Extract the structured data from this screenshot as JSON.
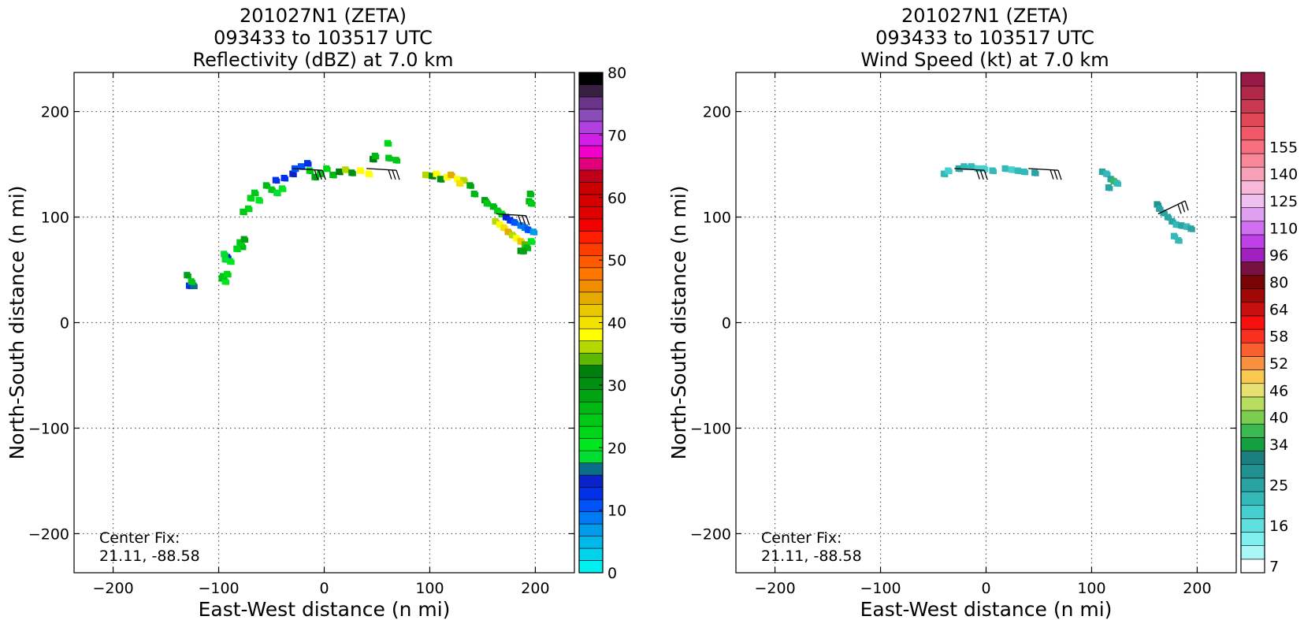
{
  "chart_data": [
    {
      "type": "heatmap",
      "title": [
        "201027N1 (ZETA)",
        "093433 to 103517 UTC",
        "Reflectivity (dBZ) at 7.0 km"
      ],
      "xlabel": "East-West distance (n mi)",
      "ylabel": "North-South distance (n mi)",
      "xlim": [
        -237,
        237
      ],
      "ylim": [
        -237,
        237
      ],
      "x_ticks": [
        -200,
        -100,
        0,
        100,
        200
      ],
      "y_ticks": [
        -200,
        -100,
        0,
        100,
        200
      ],
      "x_tick_labels": [
        "−200",
        "−100",
        "0",
        "100",
        "200"
      ],
      "y_tick_labels": [
        "−200",
        "−100",
        "0",
        "100",
        "200"
      ],
      "grid": true,
      "annotation": {
        "line1": "Center Fix:",
        "line2": "21.11, -88.58"
      },
      "colorbar": {
        "min": 0,
        "max": 80,
        "ticks": [
          0,
          10,
          20,
          30,
          40,
          50,
          60,
          70,
          80
        ],
        "tick_labels": [
          "0",
          "10",
          "20",
          "30",
          "40",
          "50",
          "60",
          "70",
          "80"
        ],
        "colors": [
          "#00efef",
          "#00d4ec",
          "#00b8ea",
          "#009bea",
          "#0079f5",
          "#0053fb",
          "#0030e8",
          "#0a23c8",
          "#0a6e88",
          "#00dd33",
          "#00e61e",
          "#00d618",
          "#00c816",
          "#00b814",
          "#00a312",
          "#008f10",
          "#007f0e",
          "#5cb800",
          "#b5d800",
          "#ffff00",
          "#f3e200",
          "#e9c800",
          "#e5aa00",
          "#f08e00",
          "#ff7600",
          "#ff5a00",
          "#ff3c00",
          "#ff1e00",
          "#f20000",
          "#e00000",
          "#d40000",
          "#c80000",
          "#c0001a",
          "#e0007a",
          "#f000c8",
          "#d020e8",
          "#b040e0",
          "#8a4cb8",
          "#6a3488",
          "#3a2040",
          "#000000"
        ]
      },
      "series": [
        {
          "points": [
            [
              -130,
              45
            ],
            [
              -128,
              35
            ],
            [
              -124,
              35
            ],
            [
              -126,
              39
            ],
            [
              -97,
              42
            ],
            [
              -94,
              39
            ],
            [
              -96,
              44
            ],
            [
              -92,
              46
            ],
            [
              -92,
              62
            ],
            [
              -94,
              60
            ],
            [
              -89,
              58
            ],
            [
              -95,
              65
            ],
            [
              -78,
              72
            ],
            [
              -80,
              76
            ],
            [
              -76,
              79
            ],
            [
              -83,
              70
            ],
            [
              -72,
              108
            ],
            [
              -77,
              105
            ],
            [
              -70,
              118
            ],
            [
              -66,
              123
            ],
            [
              -62,
              116
            ],
            [
              -55,
              130
            ],
            [
              -50,
              126
            ],
            [
              -45,
              123
            ],
            [
              -40,
              127
            ],
            [
              -46,
              135
            ],
            [
              -38,
              137
            ],
            [
              -30,
              141
            ],
            [
              -28,
              146
            ],
            [
              -22,
              148
            ],
            [
              -16,
              151
            ],
            [
              -14,
              144
            ],
            [
              -9,
              138
            ],
            [
              -4,
              141
            ],
            [
              2,
              146
            ],
            [
              8,
              140
            ],
            [
              14,
              143
            ],
            [
              20,
              145
            ],
            [
              26,
              142
            ],
            [
              34,
              144
            ],
            [
              42,
              141
            ],
            [
              46,
              155
            ],
            [
              48,
              158
            ],
            [
              61,
              156
            ],
            [
              68,
              154
            ],
            [
              60,
              170
            ],
            [
              96,
              140
            ],
            [
              102,
              139
            ],
            [
              106,
              141
            ],
            [
              110,
              136
            ],
            [
              116,
              138
            ],
            [
              120,
              140
            ],
            [
              126,
              136
            ],
            [
              132,
              135
            ],
            [
              138,
              130
            ],
            [
              128,
              132
            ],
            [
              142,
              122
            ],
            [
              152,
              116
            ],
            [
              154,
              113
            ],
            [
              160,
              110
            ],
            [
              164,
              106
            ],
            [
              168,
              103
            ],
            [
              172,
              100
            ],
            [
              176,
              97
            ],
            [
              180,
              95
            ],
            [
              186,
              92
            ],
            [
              190,
              90
            ],
            [
              193,
              88
            ],
            [
              198,
              86
            ],
            [
              162,
              96
            ],
            [
              166,
              93
            ],
            [
              170,
              90
            ],
            [
              174,
              86
            ],
            [
              178,
              83
            ],
            [
              182,
              80
            ],
            [
              186,
              77
            ],
            [
              190,
              74
            ],
            [
              186,
              68
            ],
            [
              195,
              122
            ],
            [
              194,
              115
            ],
            [
              196,
              113
            ],
            [
              196,
              77
            ],
            [
              192,
              71
            ],
            [
              188,
              68
            ]
          ],
          "values": [
            28,
            12,
            16,
            25,
            27,
            21,
            24,
            22,
            15,
            18,
            21,
            19,
            26,
            24,
            28,
            22,
            23,
            25,
            22,
            24,
            20,
            27,
            25,
            18,
            21,
            12,
            13,
            14,
            10,
            11,
            12,
            25,
            28,
            24,
            22,
            26,
            33,
            36,
            31,
            39,
            38,
            33,
            27,
            25,
            24,
            22,
            36,
            33,
            38,
            31,
            39,
            43,
            38,
            36,
            28,
            40,
            27,
            28,
            25,
            27,
            24,
            22,
            15,
            12,
            10,
            9,
            8,
            10,
            7,
            36,
            38,
            40,
            43,
            37,
            39,
            41,
            35,
            31,
            27,
            26,
            25,
            21,
            26,
            29
          ]
        }
      ],
      "wind_barbs": [
        {
          "x": -30,
          "y": 146,
          "speed_kt": 25
        },
        {
          "x": 40,
          "y": 146,
          "speed_kt": 25
        },
        {
          "x": 163,
          "y": 103,
          "speed_kt": 25
        }
      ]
    },
    {
      "type": "heatmap",
      "title": [
        "201027N1 (ZETA)",
        "093433 to 103517 UTC",
        "Wind Speed (kt) at 7.0 km"
      ],
      "xlabel": "East-West distance (n mi)",
      "ylabel": "North-South distance (n mi)",
      "xlim": [
        -237,
        237
      ],
      "ylim": [
        -237,
        237
      ],
      "x_ticks": [
        -200,
        -100,
        0,
        100,
        200
      ],
      "y_ticks": [
        -200,
        -100,
        0,
        100,
        200
      ],
      "x_tick_labels": [
        "−200",
        "−100",
        "0",
        "100",
        "200"
      ],
      "y_tick_labels": [
        "−200",
        "−100",
        "0",
        "100",
        "200"
      ],
      "grid": true,
      "annotation": {
        "line1": "Center Fix:",
        "line2": "21.11, -88.58"
      },
      "colorbar": {
        "bins": [
          7,
          10,
          13,
          16,
          19,
          22,
          25,
          28,
          31,
          34,
          37,
          40,
          43,
          46,
          49,
          52,
          55,
          58,
          61,
          64,
          72,
          80,
          88,
          96,
          103,
          110,
          118,
          125,
          133,
          140,
          148,
          155,
          162
        ],
        "tick_values": [
          7,
          16,
          25,
          34,
          40,
          46,
          52,
          58,
          64,
          80,
          96,
          110,
          125,
          140,
          155
        ],
        "tick_labels": [
          "7",
          "16",
          "25",
          "34",
          "40",
          "46",
          "52",
          "58",
          "64",
          "80",
          "96",
          "110",
          "125",
          "140",
          "155"
        ],
        "colors": [
          "#ffffff",
          "#aaf7f7",
          "#7fefef",
          "#5fe0e0",
          "#45cfcf",
          "#35b8b8",
          "#2aa3a3",
          "#219090",
          "#197f7f",
          "#14a040",
          "#3cb850",
          "#7ccc50",
          "#b8dc60",
          "#e6e070",
          "#f8c850",
          "#f89040",
          "#f86030",
          "#f83020",
          "#f81010",
          "#c81010",
          "#a00808",
          "#780404",
          "#781040",
          "#a020c0",
          "#c040e8",
          "#d070f0",
          "#e0a0f0",
          "#f0c0f0",
          "#f8b8d8",
          "#f8a0b8",
          "#f88898",
          "#f87080",
          "#f05868",
          "#e04858",
          "#c83850",
          "#b02848",
          "#981848"
        ]
      },
      "series": [
        {
          "points": [
            [
              -40,
              141
            ],
            [
              -36,
              144
            ],
            [
              -26,
              146
            ],
            [
              -21,
              148
            ],
            [
              -14,
              148
            ],
            [
              -8,
              146
            ],
            [
              -2,
              146
            ],
            [
              6,
              144
            ],
            [
              18,
              146
            ],
            [
              24,
              145
            ],
            [
              30,
              144
            ],
            [
              36,
              143
            ],
            [
              46,
              142
            ],
            [
              110,
              143
            ],
            [
              114,
              141
            ],
            [
              118,
              136
            ],
            [
              121,
              134
            ],
            [
              124,
              132
            ],
            [
              162,
              112
            ],
            [
              164,
              108
            ],
            [
              168,
              104
            ],
            [
              172,
              100
            ],
            [
              176,
              96
            ],
            [
              180,
              93
            ],
            [
              185,
              92
            ],
            [
              190,
              91
            ],
            [
              194,
              89
            ],
            [
              178,
              82
            ],
            [
              182,
              78
            ],
            [
              116,
              128
            ]
          ],
          "values": [
            22,
            21,
            25,
            23,
            22,
            20,
            21,
            23,
            22,
            20,
            24,
            22,
            25,
            25,
            22,
            27,
            38,
            24,
            28,
            26,
            27,
            25,
            26,
            24,
            25,
            23,
            26,
            22,
            24,
            27
          ]
        }
      ],
      "wind_barbs": [
        {
          "x": -30,
          "y": 146,
          "speed_kt": 25
        },
        {
          "x": 40,
          "y": 146,
          "speed_kt": 25
        },
        {
          "x": 163,
          "y": 103,
          "speed_kt": 25
        }
      ]
    }
  ]
}
